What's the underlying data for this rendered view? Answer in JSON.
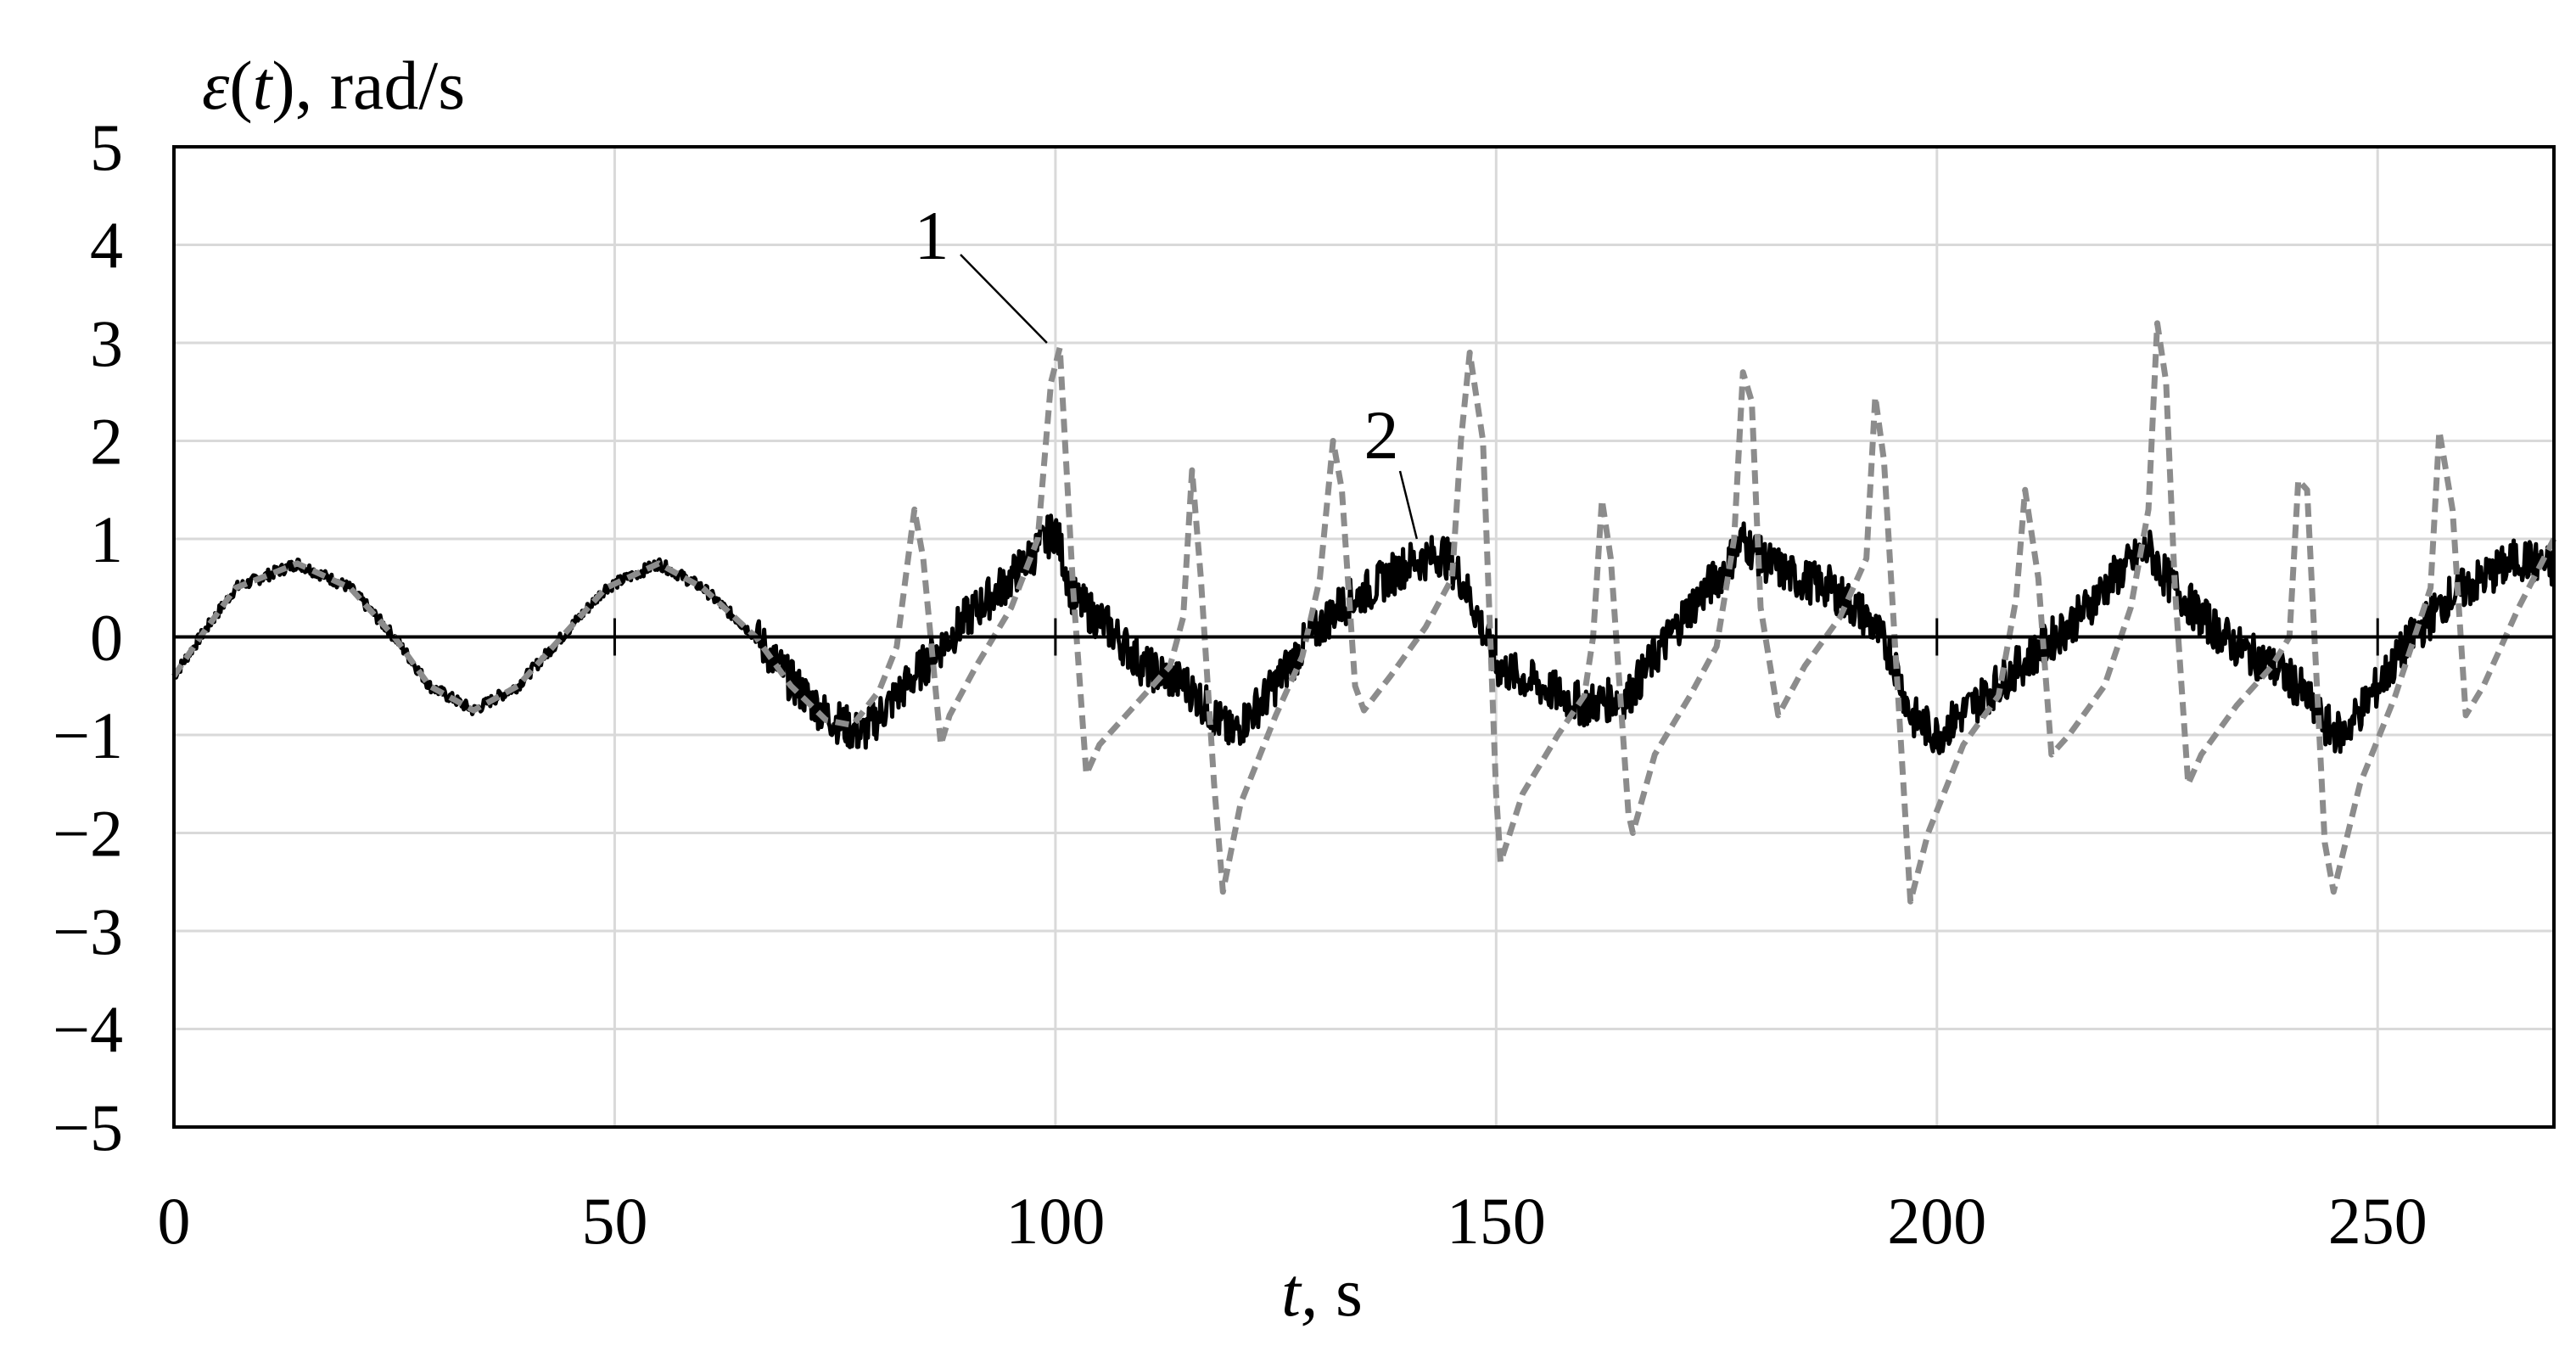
{
  "chart_data": {
    "type": "line",
    "ylabel": {
      "symbol": "ε",
      "open": "(",
      "var": "t",
      "close": ")",
      "unit": ", rad/s"
    },
    "xlabel": {
      "var": "t,",
      "unit": " s"
    },
    "xlim": [
      0,
      270
    ],
    "ylim": [
      -5,
      5
    ],
    "x_ticks": [
      0,
      50,
      100,
      150,
      200,
      250
    ],
    "y_ticks": [
      {
        "value": 5,
        "label": "5"
      },
      {
        "value": 4,
        "label": "4"
      },
      {
        "value": 3,
        "label": "3"
      },
      {
        "value": 2,
        "label": "2"
      },
      {
        "value": 1,
        "label": "1"
      },
      {
        "value": 0,
        "label": "0"
      },
      {
        "value": -1,
        "label": "−1"
      },
      {
        "value": -2,
        "label": "−2"
      },
      {
        "value": -3,
        "label": "−3"
      },
      {
        "value": -4,
        "label": "−4"
      },
      {
        "value": -5,
        "label": "−5"
      }
    ],
    "grid": true,
    "series": [
      {
        "name": "1",
        "color": "#8c8c8c",
        "style": "dashed",
        "label_at": {
          "x": 100,
          "y": 3.0
        },
        "points": [
          [
            0,
            -0.4
          ],
          [
            3,
            0.0
          ],
          [
            7,
            0.5
          ],
          [
            14,
            0.75
          ],
          [
            20,
            0.5
          ],
          [
            25,
            0.0
          ],
          [
            29,
            -0.5
          ],
          [
            34,
            -0.75
          ],
          [
            39,
            -0.5
          ],
          [
            44,
            0.0
          ],
          [
            49,
            0.5
          ],
          [
            55,
            0.75
          ],
          [
            60,
            0.5
          ],
          [
            66,
            0.0
          ],
          [
            70,
            -0.5
          ],
          [
            74,
            -0.85
          ],
          [
            77,
            -0.9
          ],
          [
            80,
            -0.55
          ],
          [
            82,
            -0.1
          ],
          [
            84,
            1.3
          ],
          [
            85,
            0.8
          ],
          [
            87,
            -1.1
          ],
          [
            88,
            -0.8
          ],
          [
            91,
            -0.3
          ],
          [
            95,
            0.3
          ],
          [
            98,
            1.0
          ],
          [
            99.5,
            2.6
          ],
          [
            100.5,
            2.95
          ],
          [
            102,
            0.5
          ],
          [
            103.5,
            -1.4
          ],
          [
            105,
            -1.1
          ],
          [
            109,
            -0.7
          ],
          [
            113,
            -0.3
          ],
          [
            114.5,
            0.2
          ],
          [
            115.5,
            1.7
          ],
          [
            116.5,
            0.6
          ],
          [
            118,
            -1.5
          ],
          [
            119,
            -2.6
          ],
          [
            121,
            -1.7
          ],
          [
            125,
            -0.8
          ],
          [
            128,
            -0.2
          ],
          [
            130,
            0.6
          ],
          [
            131.5,
            2.0
          ],
          [
            132.5,
            1.5
          ],
          [
            134,
            -0.5
          ],
          [
            135,
            -0.75
          ],
          [
            138,
            -0.4
          ],
          [
            142,
            0.1
          ],
          [
            145,
            0.6
          ],
          [
            146,
            2.0
          ],
          [
            147,
            2.9
          ],
          [
            148.5,
            2.0
          ],
          [
            150,
            -1.6
          ],
          [
            150.5,
            -2.3
          ],
          [
            153,
            -1.6
          ],
          [
            157,
            -1.0
          ],
          [
            160,
            -0.6
          ],
          [
            161,
            0.0
          ],
          [
            162,
            1.4
          ],
          [
            163,
            0.8
          ],
          [
            165,
            -1.8
          ],
          [
            165.5,
            -2.0
          ],
          [
            168,
            -1.2
          ],
          [
            172,
            -0.6
          ],
          [
            175,
            -0.1
          ],
          [
            177,
            1.0
          ],
          [
            178,
            2.7
          ],
          [
            179,
            2.4
          ],
          [
            180,
            0.3
          ],
          [
            182,
            -0.8
          ],
          [
            185,
            -0.3
          ],
          [
            189,
            0.2
          ],
          [
            192,
            0.8
          ],
          [
            193,
            2.45
          ],
          [
            194,
            1.8
          ],
          [
            196,
            -1.2
          ],
          [
            197,
            -2.7
          ],
          [
            199,
            -2.0
          ],
          [
            203,
            -1.1
          ],
          [
            207,
            -0.6
          ],
          [
            209,
            0.4
          ],
          [
            210,
            1.5
          ],
          [
            211.5,
            0.6
          ],
          [
            213,
            -1.2
          ],
          [
            215,
            -1.0
          ],
          [
            219,
            -0.5
          ],
          [
            222,
            0.3
          ],
          [
            224,
            1.3
          ],
          [
            225,
            3.2
          ],
          [
            226,
            2.6
          ],
          [
            227,
            0.5
          ],
          [
            228.5,
            -1.5
          ],
          [
            230,
            -1.2
          ],
          [
            234,
            -0.7
          ],
          [
            238,
            -0.3
          ],
          [
            240,
            0.0
          ],
          [
            241,
            1.6
          ],
          [
            242,
            1.5
          ],
          [
            244,
            -2.1
          ],
          [
            245,
            -2.6
          ],
          [
            248,
            -1.5
          ],
          [
            252,
            -0.6
          ],
          [
            256,
            0.5
          ],
          [
            257,
            2.1
          ],
          [
            258.5,
            1.3
          ],
          [
            260,
            -0.8
          ],
          [
            262,
            -0.5
          ],
          [
            266,
            0.3
          ],
          [
            270,
            1.0
          ]
        ]
      },
      {
        "name": "2",
        "color": "#000000",
        "style": "solid-noisy",
        "label_at": {
          "x": 141,
          "y": 1.0
        },
        "points": [
          [
            0,
            -0.4
          ],
          [
            3,
            0.0
          ],
          [
            7,
            0.5
          ],
          [
            14,
            0.75
          ],
          [
            20,
            0.5
          ],
          [
            25,
            0.0
          ],
          [
            29,
            -0.5
          ],
          [
            34,
            -0.75
          ],
          [
            39,
            -0.5
          ],
          [
            44,
            0.0
          ],
          [
            49,
            0.5
          ],
          [
            55,
            0.75
          ],
          [
            60,
            0.5
          ],
          [
            66,
            0.0
          ],
          [
            70,
            -0.45
          ],
          [
            74,
            -0.8
          ],
          [
            78,
            -1.0
          ],
          [
            82,
            -0.6
          ],
          [
            86,
            -0.2
          ],
          [
            90,
            0.2
          ],
          [
            95,
            0.6
          ],
          [
            100,
            1.1
          ],
          [
            102,
            0.4
          ],
          [
            106,
            0.1
          ],
          [
            110,
            -0.3
          ],
          [
            115,
            -0.5
          ],
          [
            118,
            -0.8
          ],
          [
            120,
            -1.0
          ],
          [
            124,
            -0.6
          ],
          [
            128,
            -0.1
          ],
          [
            132,
            0.3
          ],
          [
            136,
            0.5
          ],
          [
            140,
            0.75
          ],
          [
            144,
            0.85
          ],
          [
            146,
            0.6
          ],
          [
            148,
            0.2
          ],
          [
            150,
            -0.3
          ],
          [
            155,
            -0.5
          ],
          [
            160,
            -0.7
          ],
          [
            165,
            -0.6
          ],
          [
            168,
            -0.2
          ],
          [
            172,
            0.3
          ],
          [
            176,
            0.7
          ],
          [
            178,
            1.0
          ],
          [
            180,
            0.8
          ],
          [
            184,
            0.6
          ],
          [
            188,
            0.5
          ],
          [
            192,
            0.2
          ],
          [
            195,
            -0.2
          ],
          [
            197,
            -0.8
          ],
          [
            200,
            -1.0
          ],
          [
            204,
            -0.7
          ],
          [
            208,
            -0.4
          ],
          [
            212,
            -0.1
          ],
          [
            216,
            0.2
          ],
          [
            220,
            0.6
          ],
          [
            224,
            0.9
          ],
          [
            226,
            0.6
          ],
          [
            230,
            0.2
          ],
          [
            234,
            -0.1
          ],
          [
            238,
            -0.3
          ],
          [
            241,
            -0.5
          ],
          [
            244,
            -0.9
          ],
          [
            246,
            -1.0
          ],
          [
            250,
            -0.5
          ],
          [
            254,
            0.0
          ],
          [
            258,
            0.4
          ],
          [
            262,
            0.6
          ],
          [
            266,
            0.8
          ],
          [
            270,
            0.7
          ]
        ]
      }
    ]
  }
}
